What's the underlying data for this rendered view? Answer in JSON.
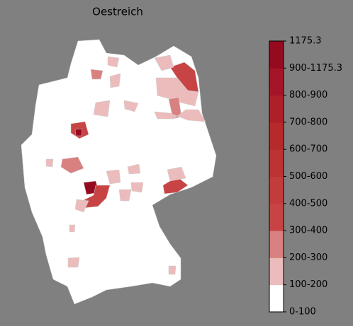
{
  "title": "Oestreich",
  "colorbar": {
    "labels": [
      "0-100",
      "100-200",
      "200-300",
      "300-400",
      "400-500",
      "500-600",
      "600-700",
      "700-800",
      "800-900",
      "900-1175.3",
      "1175.3"
    ],
    "colors": [
      "#ffffff",
      "#ecbcbc",
      "#d98080",
      "#c84444",
      "#c43b3b",
      "#bd3333",
      "#b62a2b",
      "#ae2027",
      "#a41627",
      "#960a20"
    ]
  }
}
